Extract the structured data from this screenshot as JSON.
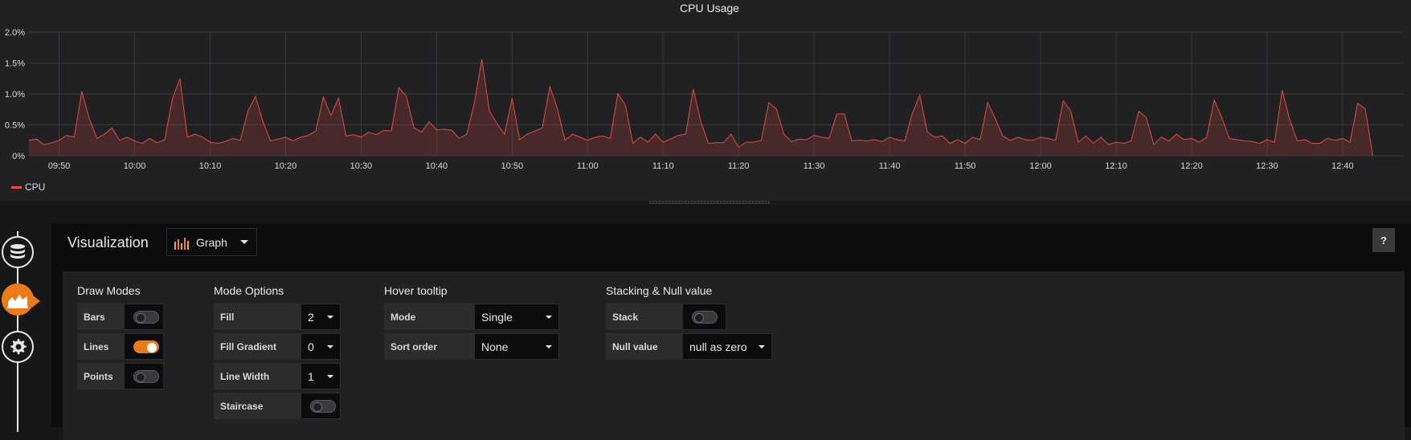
{
  "graph": {
    "title": "CPU Usage",
    "legend_label": "CPU"
  },
  "chart_data": {
    "type": "area",
    "title": "CPU Usage",
    "y_ticks": [
      "2.0%",
      "1.5%",
      "1.0%",
      "0.5%",
      "0%"
    ],
    "ylim": [
      0,
      2.0
    ],
    "x_ticks": [
      "09:50",
      "10:00",
      "10:10",
      "10:20",
      "10:30",
      "10:40",
      "10:50",
      "11:00",
      "11:10",
      "11:20",
      "11:30",
      "11:40",
      "11:50",
      "12:00",
      "12:10",
      "12:20",
      "12:30",
      "12:40"
    ],
    "x_range": [
      "09:46",
      "12:48"
    ],
    "grid": true,
    "legend_placement": "bottom-left",
    "series": [
      {
        "name": "CPU",
        "color": "#e24d42",
        "points": [
          [
            "09:46",
            0.25
          ],
          [
            "09:47",
            0.27
          ],
          [
            "09:48",
            0.18
          ],
          [
            "09:49",
            0.21
          ],
          [
            "09:50",
            0.25
          ],
          [
            "09:51",
            0.33
          ],
          [
            "09:52",
            0.3
          ],
          [
            "09:53",
            1.04
          ],
          [
            "09:54",
            0.6
          ],
          [
            "09:55",
            0.28
          ],
          [
            "09:56",
            0.35
          ],
          [
            "09:57",
            0.45
          ],
          [
            "09:58",
            0.25
          ],
          [
            "09:59",
            0.3
          ],
          [
            "10:00",
            0.24
          ],
          [
            "10:01",
            0.2
          ],
          [
            "10:02",
            0.28
          ],
          [
            "10:03",
            0.21
          ],
          [
            "10:04",
            0.26
          ],
          [
            "10:05",
            0.92
          ],
          [
            "10:06",
            1.25
          ],
          [
            "10:07",
            0.3
          ],
          [
            "10:08",
            0.35
          ],
          [
            "10:09",
            0.3
          ],
          [
            "10:10",
            0.22
          ],
          [
            "10:11",
            0.2
          ],
          [
            "10:12",
            0.23
          ],
          [
            "10:13",
            0.28
          ],
          [
            "10:14",
            0.25
          ],
          [
            "10:15",
            0.72
          ],
          [
            "10:16",
            0.96
          ],
          [
            "10:17",
            0.55
          ],
          [
            "10:18",
            0.24
          ],
          [
            "10:19",
            0.27
          ],
          [
            "10:20",
            0.3
          ],
          [
            "10:21",
            0.24
          ],
          [
            "10:22",
            0.3
          ],
          [
            "10:23",
            0.33
          ],
          [
            "10:24",
            0.4
          ],
          [
            "10:25",
            0.95
          ],
          [
            "10:26",
            0.65
          ],
          [
            "10:27",
            0.93
          ],
          [
            "10:28",
            0.32
          ],
          [
            "10:29",
            0.34
          ],
          [
            "10:30",
            0.3
          ],
          [
            "10:31",
            0.38
          ],
          [
            "10:32",
            0.34
          ],
          [
            "10:33",
            0.41
          ],
          [
            "10:34",
            0.4
          ],
          [
            "10:35",
            1.1
          ],
          [
            "10:36",
            0.96
          ],
          [
            "10:37",
            0.45
          ],
          [
            "10:38",
            0.38
          ],
          [
            "10:39",
            0.55
          ],
          [
            "10:40",
            0.42
          ],
          [
            "10:41",
            0.43
          ],
          [
            "10:42",
            0.41
          ],
          [
            "10:43",
            0.28
          ],
          [
            "10:44",
            0.35
          ],
          [
            "10:45",
            0.85
          ],
          [
            "10:46",
            1.56
          ],
          [
            "10:47",
            0.72
          ],
          [
            "10:48",
            0.52
          ],
          [
            "10:49",
            0.35
          ],
          [
            "10:50",
            0.93
          ],
          [
            "10:51",
            0.26
          ],
          [
            "10:52",
            0.35
          ],
          [
            "10:53",
            0.4
          ],
          [
            "10:54",
            0.45
          ],
          [
            "10:55",
            1.12
          ],
          [
            "10:56",
            0.76
          ],
          [
            "10:57",
            0.25
          ],
          [
            "10:58",
            0.35
          ],
          [
            "10:59",
            0.3
          ],
          [
            "11:00",
            0.25
          ],
          [
            "11:01",
            0.3
          ],
          [
            "11:02",
            0.32
          ],
          [
            "11:03",
            0.28
          ],
          [
            "11:04",
            1.0
          ],
          [
            "11:05",
            0.82
          ],
          [
            "11:06",
            0.2
          ],
          [
            "11:07",
            0.3
          ],
          [
            "11:08",
            0.22
          ],
          [
            "11:09",
            0.35
          ],
          [
            "11:10",
            0.22
          ],
          [
            "11:11",
            0.27
          ],
          [
            "11:12",
            0.33
          ],
          [
            "11:13",
            0.35
          ],
          [
            "11:14",
            1.08
          ],
          [
            "11:15",
            0.55
          ],
          [
            "11:16",
            0.2
          ],
          [
            "11:17",
            0.21
          ],
          [
            "11:18",
            0.21
          ],
          [
            "11:19",
            0.35
          ],
          [
            "11:20",
            0.14
          ],
          [
            "11:21",
            0.22
          ],
          [
            "11:22",
            0.22
          ],
          [
            "11:23",
            0.25
          ],
          [
            "11:24",
            0.86
          ],
          [
            "11:25",
            0.76
          ],
          [
            "11:26",
            0.35
          ],
          [
            "11:27",
            0.23
          ],
          [
            "11:28",
            0.27
          ],
          [
            "11:29",
            0.26
          ],
          [
            "11:30",
            0.33
          ],
          [
            "11:31",
            0.3
          ],
          [
            "11:32",
            0.28
          ],
          [
            "11:33",
            0.67
          ],
          [
            "11:34",
            0.68
          ],
          [
            "11:35",
            0.24
          ],
          [
            "11:36",
            0.25
          ],
          [
            "11:37",
            0.24
          ],
          [
            "11:38",
            0.26
          ],
          [
            "11:39",
            0.23
          ],
          [
            "11:40",
            0.3
          ],
          [
            "11:41",
            0.26
          ],
          [
            "11:42",
            0.24
          ],
          [
            "11:43",
            0.68
          ],
          [
            "11:44",
            0.98
          ],
          [
            "11:45",
            0.38
          ],
          [
            "11:46",
            0.3
          ],
          [
            "11:47",
            0.32
          ],
          [
            "11:48",
            0.2
          ],
          [
            "11:49",
            0.26
          ],
          [
            "11:50",
            0.2
          ],
          [
            "11:51",
            0.3
          ],
          [
            "11:52",
            0.26
          ],
          [
            "11:53",
            0.86
          ],
          [
            "11:54",
            0.6
          ],
          [
            "11:55",
            0.32
          ],
          [
            "11:56",
            0.25
          ],
          [
            "11:57",
            0.3
          ],
          [
            "11:58",
            0.26
          ],
          [
            "11:59",
            0.25
          ],
          [
            "12:00",
            0.3
          ],
          [
            "12:01",
            0.28
          ],
          [
            "12:02",
            0.25
          ],
          [
            "12:03",
            0.89
          ],
          [
            "12:04",
            0.72
          ],
          [
            "12:05",
            0.22
          ],
          [
            "12:06",
            0.32
          ],
          [
            "12:07",
            0.2
          ],
          [
            "12:08",
            0.3
          ],
          [
            "12:09",
            0.18
          ],
          [
            "12:10",
            0.22
          ],
          [
            "12:11",
            0.2
          ],
          [
            "12:12",
            0.24
          ],
          [
            "12:13",
            0.72
          ],
          [
            "12:14",
            0.62
          ],
          [
            "12:15",
            0.18
          ],
          [
            "12:16",
            0.3
          ],
          [
            "12:17",
            0.24
          ],
          [
            "12:18",
            0.35
          ],
          [
            "12:19",
            0.26
          ],
          [
            "12:20",
            0.28
          ],
          [
            "12:21",
            0.22
          ],
          [
            "12:22",
            0.3
          ],
          [
            "12:23",
            0.9
          ],
          [
            "12:24",
            0.62
          ],
          [
            "12:25",
            0.28
          ],
          [
            "12:26",
            0.26
          ],
          [
            "12:27",
            0.24
          ],
          [
            "12:28",
            0.23
          ],
          [
            "12:29",
            0.2
          ],
          [
            "12:30",
            0.26
          ],
          [
            "12:31",
            0.22
          ],
          [
            "12:32",
            1.06
          ],
          [
            "12:33",
            0.58
          ],
          [
            "12:34",
            0.24
          ],
          [
            "12:35",
            0.26
          ],
          [
            "12:36",
            0.2
          ],
          [
            "12:37",
            0.2
          ],
          [
            "12:38",
            0.28
          ],
          [
            "12:39",
            0.25
          ],
          [
            "12:40",
            0.28
          ],
          [
            "12:41",
            0.22
          ],
          [
            "12:42",
            0.85
          ],
          [
            "12:43",
            0.76
          ],
          [
            "12:44",
            0.0
          ]
        ]
      }
    ]
  },
  "editor": {
    "rail_icons": [
      "database-icon",
      "area-chart-icon",
      "gear-icon"
    ],
    "viz_header": "Visualization",
    "viz_selected": "Graph",
    "help_label": "?"
  },
  "draw_modes": {
    "title": "Draw Modes",
    "rows": [
      {
        "label": "Bars",
        "on": false
      },
      {
        "label": "Lines",
        "on": true
      },
      {
        "label": "Points",
        "on": false
      }
    ]
  },
  "mode_options": {
    "title": "Mode Options",
    "fill_label": "Fill",
    "fill_value": "2",
    "fill_gradient_label": "Fill Gradient",
    "fill_gradient_value": "0",
    "line_width_label": "Line Width",
    "line_width_value": "1",
    "staircase_label": "Staircase",
    "staircase_on": false
  },
  "hover_tooltip": {
    "title": "Hover tooltip",
    "mode_label": "Mode",
    "mode_value": "Single",
    "sort_label": "Sort order",
    "sort_value": "None"
  },
  "stacking": {
    "title": "Stacking & Null value",
    "stack_label": "Stack",
    "stack_on": false,
    "null_label": "Null value",
    "null_value": "null as zero"
  }
}
